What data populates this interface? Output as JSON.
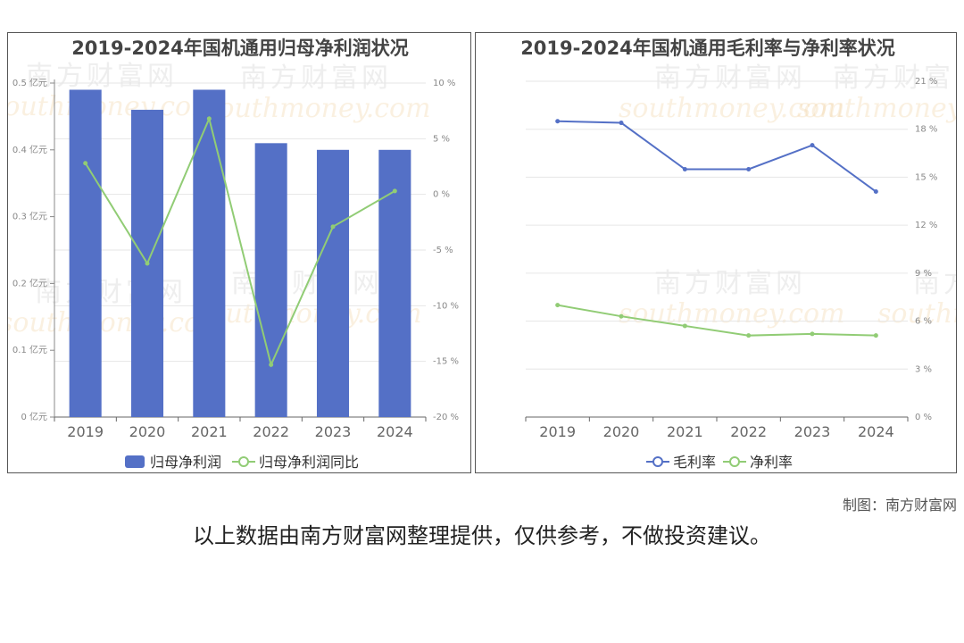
{
  "chart_data": [
    {
      "type": "bar",
      "title": "2019-2024年国机通用归母净利润状况",
      "categories": [
        "2019",
        "2020",
        "2021",
        "2022",
        "2023",
        "2024"
      ],
      "series": [
        {
          "name": "归母净利润",
          "type": "bar",
          "axis": "left",
          "values": [
            0.49,
            0.46,
            0.49,
            0.41,
            0.4,
            0.4
          ]
        },
        {
          "name": "归母净利润同比",
          "type": "line",
          "axis": "right",
          "values": [
            2.8,
            -6.2,
            6.8,
            -15.3,
            -2.9,
            0.3
          ]
        }
      ],
      "left_axis": {
        "ticks": [
          "0 亿元",
          "0.1 亿元",
          "0.2 亿元",
          "0.3 亿元",
          "0.4 亿元",
          "0.5 亿元"
        ],
        "ylim": [
          0,
          0.5
        ]
      },
      "right_axis": {
        "ticks": [
          "-20 %",
          "-15 %",
          "-10 %",
          "-5 %",
          "0 %",
          "5 %",
          "10 %"
        ],
        "ylim": [
          -20,
          10
        ]
      },
      "grid": true,
      "legend": "bottom",
      "colors": {
        "bar": "#5470c6",
        "line": "#91cc75"
      }
    },
    {
      "type": "line",
      "title": "2019-2024年国机通用毛利率与净利率状况",
      "categories": [
        "2019",
        "2020",
        "2021",
        "2022",
        "2023",
        "2024"
      ],
      "series": [
        {
          "name": "毛利率",
          "values": [
            18.5,
            18.4,
            15.5,
            15.5,
            17.0,
            14.1
          ]
        },
        {
          "name": "净利率",
          "values": [
            7.0,
            6.3,
            5.7,
            5.1,
            5.2,
            5.1
          ]
        }
      ],
      "right_axis": {
        "ticks": [
          "0 %",
          "3 %",
          "6 %",
          "9 %",
          "12 %",
          "15 %",
          "18 %",
          "21 %"
        ],
        "ylim": [
          0,
          21
        ]
      },
      "grid": true,
      "legend": "bottom",
      "colors": {
        "series1": "#5470c6",
        "series2": "#91cc75"
      }
    }
  ],
  "watermark": {
    "cn": "南方财富网",
    "en": "southmoney.com"
  },
  "footer": {
    "credit": "制图：南方财富网",
    "disclaimer": "以上数据由南方财富网整理提供，仅供参考，不做投资建议。"
  }
}
